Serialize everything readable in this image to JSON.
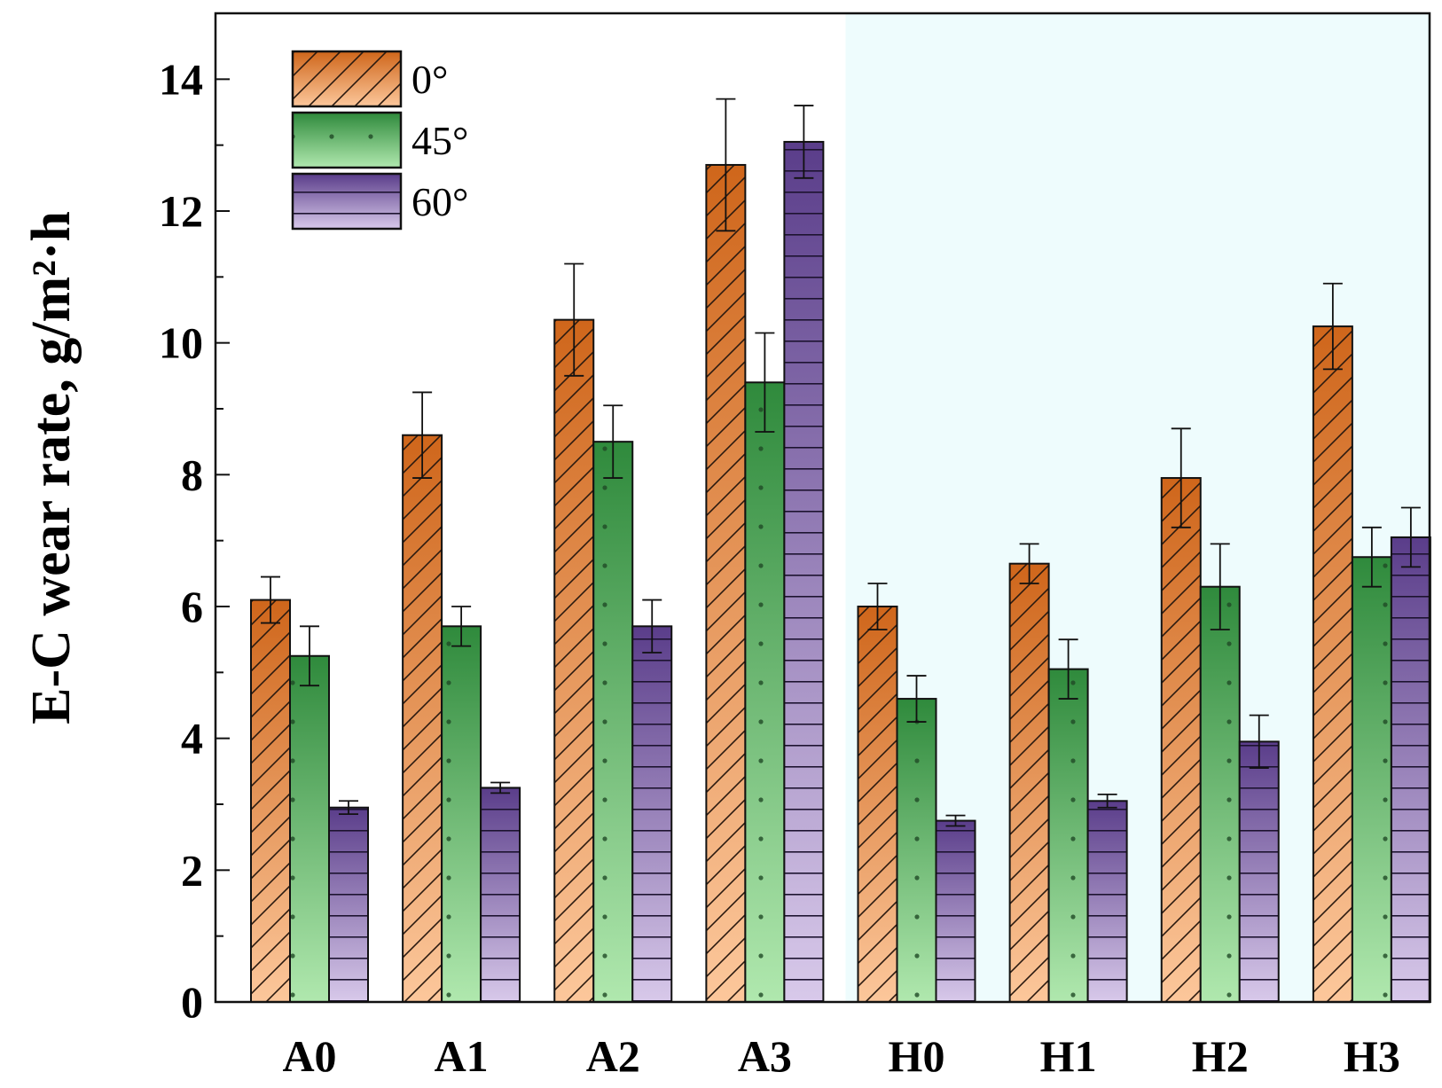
{
  "chart_data": {
    "type": "bar",
    "title": "",
    "xlabel": "",
    "ylabel": "E-C wear rate, g/m²·h",
    "ylim": [
      0,
      15
    ],
    "yticks": [
      0,
      2,
      4,
      6,
      8,
      10,
      12,
      14
    ],
    "grid": false,
    "legend_position": "top-left",
    "categories": [
      "A0",
      "A1",
      "A2",
      "A3",
      "H0",
      "H1",
      "H2",
      "H3"
    ],
    "shaded_region": {
      "from_category": "H0",
      "to_category": "H3",
      "color": "#eefcfd"
    },
    "series": [
      {
        "name": "0°",
        "pattern": "diagonal-hatch",
        "color_top": "#cf661b",
        "color_bottom": "#fcc79b",
        "values": [
          6.1,
          8.6,
          10.35,
          12.7,
          6.0,
          6.65,
          7.95,
          10.25
        ],
        "errors": [
          0.35,
          0.65,
          0.85,
          1.0,
          0.35,
          0.3,
          0.75,
          0.65
        ]
      },
      {
        "name": "45°",
        "pattern": "dots",
        "color_top": "#2f8a3c",
        "color_bottom": "#b0e8ae",
        "values": [
          5.25,
          5.7,
          8.5,
          9.4,
          4.6,
          5.05,
          6.3,
          6.75
        ],
        "errors": [
          0.45,
          0.3,
          0.55,
          0.75,
          0.35,
          0.45,
          0.65,
          0.45
        ]
      },
      {
        "name": "60°",
        "pattern": "horizontal-lines",
        "color_top": "#5a3d8a",
        "color_bottom": "#d8c9ea",
        "values": [
          2.95,
          3.25,
          5.7,
          13.05,
          2.75,
          3.05,
          3.95,
          7.05
        ],
        "errors": [
          0.1,
          0.08,
          0.4,
          0.55,
          0.08,
          0.1,
          0.4,
          0.45
        ]
      }
    ]
  }
}
